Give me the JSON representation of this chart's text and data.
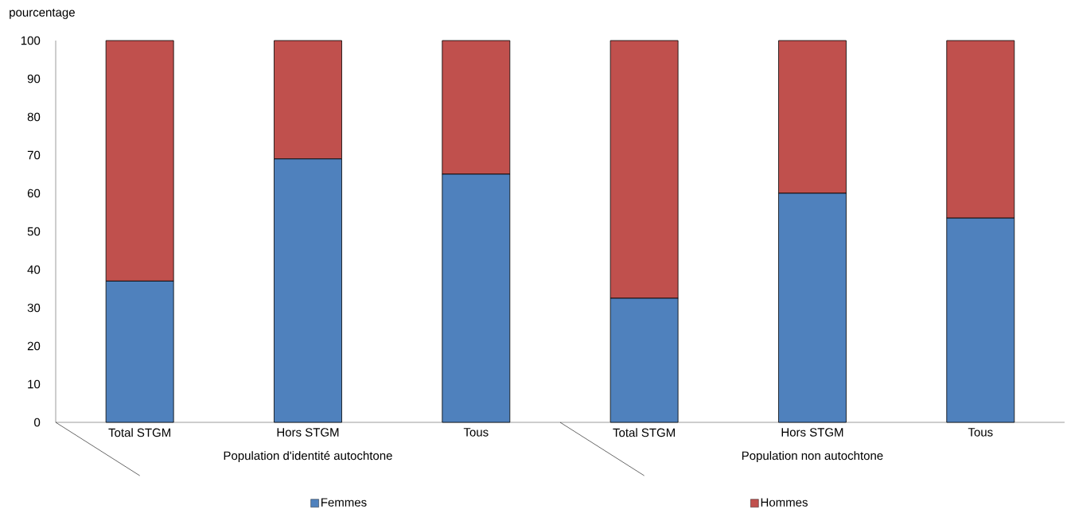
{
  "chart_data": {
    "type": "bar",
    "stacked": true,
    "ylabel": "pourcentage",
    "categories": [
      "Total STGM",
      "Hors STGM",
      "Tous",
      "Total STGM",
      "Hors STGM",
      "Tous"
    ],
    "series": [
      {
        "name": "Femmes",
        "color": "#4f81bd",
        "values": [
          37,
          69,
          65,
          32.5,
          60,
          53.5
        ]
      },
      {
        "name": "Hommes",
        "color": "#c0504d",
        "values": [
          63,
          31,
          35,
          67.5,
          40,
          46.5
        ]
      }
    ],
    "ylim": [
      0,
      100
    ],
    "yticks": [
      0,
      10,
      20,
      30,
      40,
      50,
      60,
      70,
      80,
      90,
      100
    ],
    "legend": "bottom",
    "annotations": [
      "Population d'identité autochtone",
      "Population non autochtone"
    ]
  }
}
